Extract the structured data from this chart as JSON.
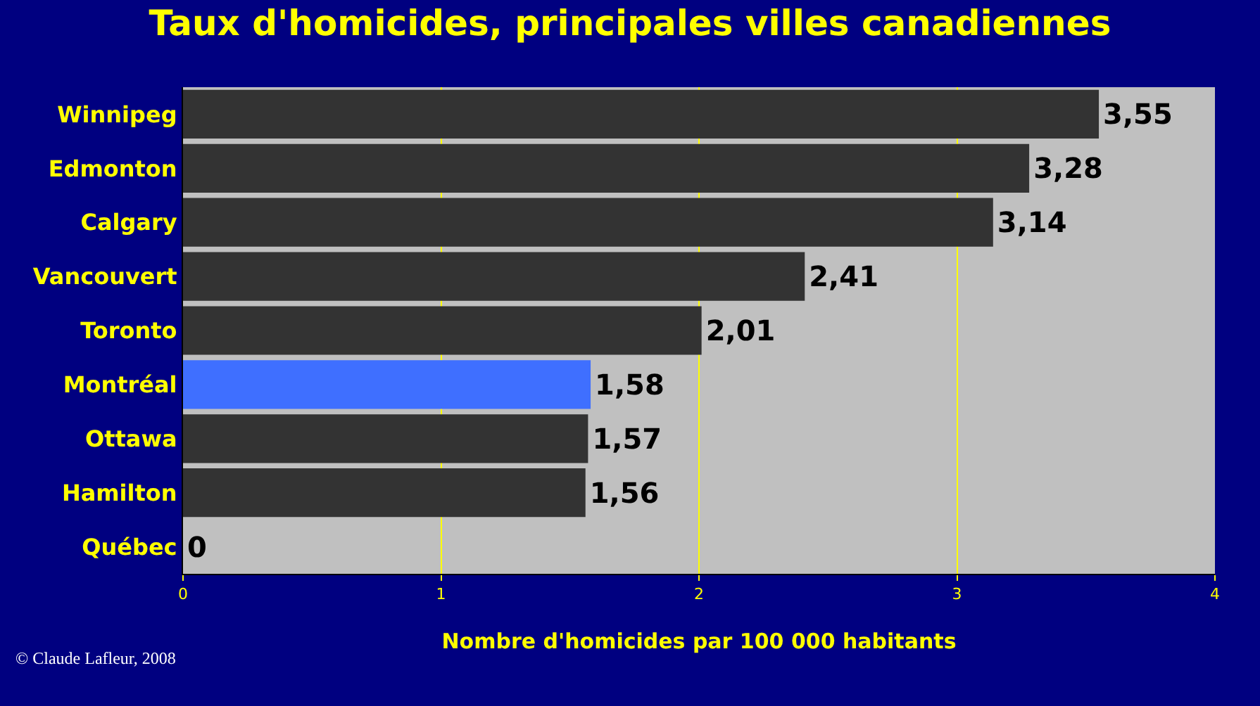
{
  "chart_data": {
    "type": "bar",
    "orientation": "horizontal",
    "title": "Taux d'homicides, principales villes canadiennes",
    "xlabel": "Nombre d'homicides par 100 000 habitants",
    "categories": [
      "Winnipeg",
      "Edmonton",
      "Calgary",
      "Vancouvert",
      "Toronto",
      "Montréal",
      "Ottawa",
      "Hamilton",
      "Québec"
    ],
    "values": [
      3.55,
      3.28,
      3.14,
      2.41,
      2.01,
      1.58,
      1.57,
      1.56,
      0
    ],
    "value_labels": [
      "3,55",
      "3,28",
      "3,14",
      "2,41",
      "2,01",
      "1,58",
      "1,57",
      "1,56",
      "0"
    ],
    "colors": [
      "#333333",
      "#333333",
      "#333333",
      "#333333",
      "#333333",
      "#3f6fff",
      "#333333",
      "#333333",
      "#333333"
    ],
    "xlim": [
      0,
      4
    ],
    "xticks": [
      0,
      1,
      2,
      3,
      4
    ],
    "grid": "x",
    "legend": false,
    "annotations": [
      "© Claude Lafleur, 2008"
    ]
  }
}
